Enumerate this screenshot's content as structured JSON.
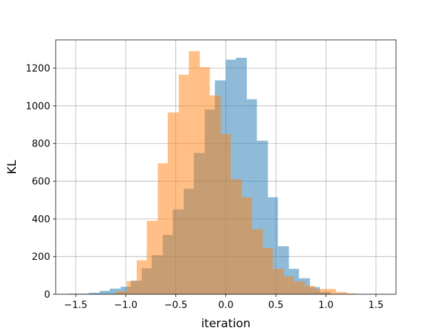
{
  "chart_data": {
    "type": "bar",
    "subtype": "histogram",
    "title": "",
    "xlabel": "iteration",
    "ylabel": "KL",
    "xlim": [
      -1.7,
      1.7
    ],
    "ylim": [
      0,
      1350
    ],
    "xticks": [
      -1.5,
      -1.0,
      -0.5,
      0.0,
      0.5,
      1.0,
      1.5
    ],
    "xtick_labels": [
      "−1.5",
      "−1.0",
      "−0.5",
      "0.0",
      "0.5",
      "1.0",
      "1.5"
    ],
    "yticks": [
      0,
      200,
      400,
      600,
      800,
      1000,
      1200
    ],
    "ytick_labels": [
      "0",
      "200",
      "400",
      "600",
      "800",
      "1000",
      "1200"
    ],
    "grid": true,
    "legend": "none",
    "series": [
      {
        "color": "#1f77b4",
        "opacity": 0.5,
        "bins": [
          [
            -1.58,
            -1.47,
            3
          ],
          [
            -1.47,
            -1.37,
            3
          ],
          [
            -1.37,
            -1.26,
            8
          ],
          [
            -1.26,
            -1.16,
            18
          ],
          [
            -1.16,
            -1.05,
            30
          ],
          [
            -1.05,
            -0.95,
            40
          ],
          [
            -0.95,
            -0.84,
            72
          ],
          [
            -0.84,
            -0.74,
            138
          ],
          [
            -0.74,
            -0.63,
            207
          ],
          [
            -0.63,
            -0.53,
            315
          ],
          [
            -0.53,
            -0.42,
            450
          ],
          [
            -0.42,
            -0.32,
            560
          ],
          [
            -0.32,
            -0.21,
            750
          ],
          [
            -0.21,
            -0.11,
            980
          ],
          [
            -0.11,
            -0.0,
            1135
          ],
          [
            -0.0,
            0.1,
            1245
          ],
          [
            0.1,
            0.21,
            1255
          ],
          [
            0.21,
            0.31,
            1035
          ],
          [
            0.31,
            0.42,
            815
          ],
          [
            0.42,
            0.52,
            515
          ],
          [
            0.52,
            0.63,
            255
          ],
          [
            0.63,
            0.73,
            135
          ],
          [
            0.73,
            0.84,
            85
          ],
          [
            0.84,
            0.94,
            38
          ],
          [
            0.94,
            1.05,
            12
          ]
        ]
      },
      {
        "color": "#ff7f0e",
        "opacity": 0.5,
        "bins": [
          [
            -1.1,
            -0.99,
            15
          ],
          [
            -0.99,
            -0.89,
            70
          ],
          [
            -0.89,
            -0.79,
            180
          ],
          [
            -0.79,
            -0.68,
            390
          ],
          [
            -0.68,
            -0.58,
            695
          ],
          [
            -0.58,
            -0.47,
            965
          ],
          [
            -0.47,
            -0.37,
            1165
          ],
          [
            -0.37,
            -0.26,
            1290
          ],
          [
            -0.26,
            -0.16,
            1205
          ],
          [
            -0.16,
            -0.05,
            1055
          ],
          [
            -0.05,
            0.05,
            850
          ],
          [
            0.05,
            0.16,
            610
          ],
          [
            0.16,
            0.26,
            515
          ],
          [
            0.26,
            0.37,
            345
          ],
          [
            0.37,
            0.47,
            245
          ],
          [
            0.47,
            0.58,
            135
          ],
          [
            0.58,
            0.68,
            95
          ],
          [
            0.68,
            0.79,
            68
          ],
          [
            0.79,
            0.89,
            45
          ],
          [
            0.89,
            1.0,
            28
          ],
          [
            1.0,
            1.1,
            28
          ],
          [
            1.1,
            1.21,
            12
          ],
          [
            1.21,
            1.31,
            4
          ]
        ]
      }
    ]
  }
}
